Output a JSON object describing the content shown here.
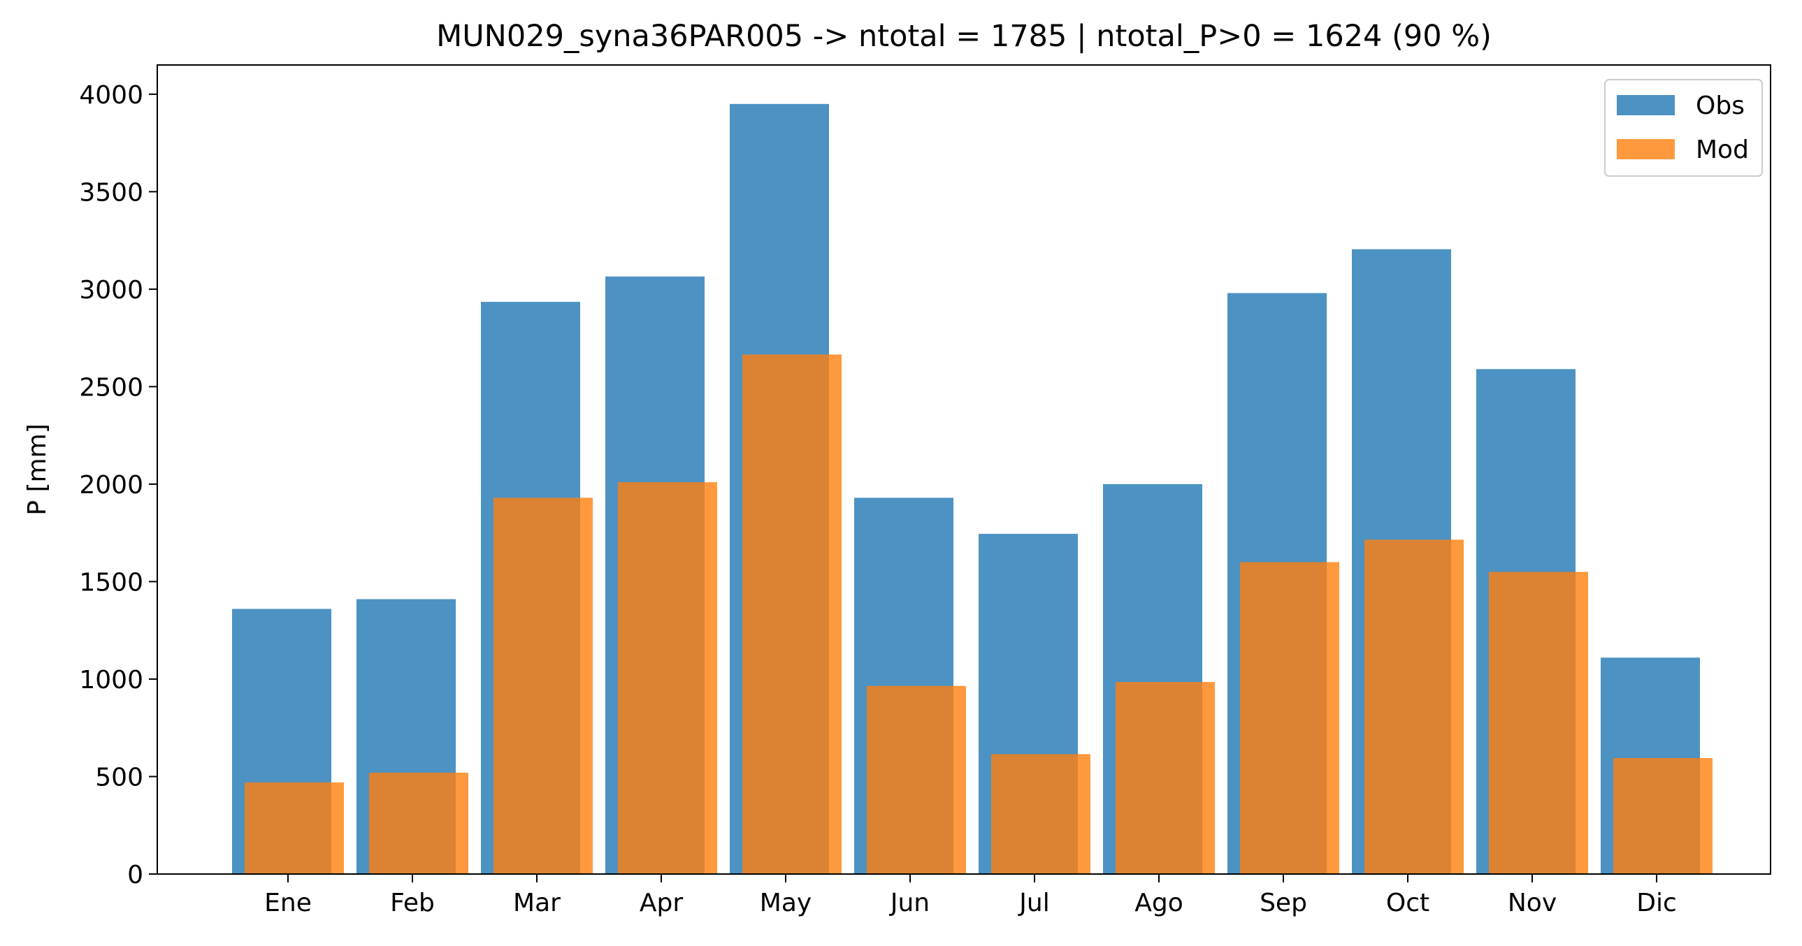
{
  "chart_data": {
    "type": "bar",
    "title": "MUN029_syna36PAR005 -> ntotal = 1785 | ntotal_P>0 = 1624 (90 %)",
    "xlabel": "",
    "ylabel": "P [mm]",
    "categories": [
      "Ene",
      "Feb",
      "Mar",
      "Apr",
      "May",
      "Jun",
      "Jul",
      "Ago",
      "Sep",
      "Oct",
      "Nov",
      "Dic"
    ],
    "series": [
      {
        "name": "Obs",
        "color": "#1f77b4",
        "alpha": 0.8,
        "values": [
          1360,
          1410,
          2935,
          3065,
          3950,
          1930,
          1745,
          2000,
          2980,
          3205,
          2590,
          1110
        ]
      },
      {
        "name": "Mod",
        "color": "#ff7f0e",
        "alpha": 0.8,
        "values": [
          470,
          520,
          1930,
          2010,
          2665,
          965,
          615,
          985,
          1600,
          1715,
          1550,
          595
        ]
      }
    ],
    "ylim": [
      0,
      4150
    ],
    "yticks": [
      0,
      500,
      1000,
      1500,
      2000,
      2500,
      3000,
      3500,
      4000
    ],
    "grid": false,
    "legend_position": "top-right"
  }
}
